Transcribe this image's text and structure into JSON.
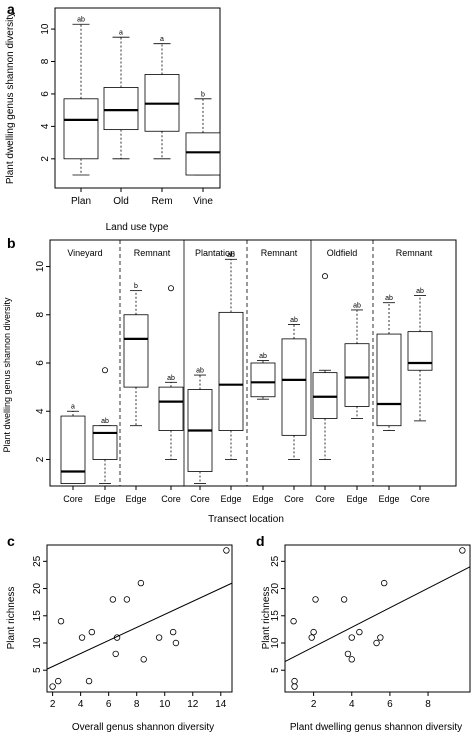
{
  "chart_data": [
    {
      "panel": "a",
      "type": "boxplot",
      "xlabel": "Land use type",
      "ylabel": "Plant dwelling genus shannon diversity",
      "ylim": [
        0.2,
        11.3
      ],
      "yticks": [
        "2",
        "4",
        "6",
        "8",
        "10"
      ],
      "categories": [
        "Plan",
        "Old",
        "Rem",
        "Vine"
      ],
      "boxes": [
        {
          "min": 1.0,
          "q1": 2.0,
          "median": 4.4,
          "q3": 5.7,
          "max": 10.3,
          "label": "ab"
        },
        {
          "min": 2.0,
          "q1": 3.8,
          "median": 5.0,
          "q3": 6.4,
          "max": 9.5,
          "label": "a"
        },
        {
          "min": 2.0,
          "q1": 3.7,
          "median": 5.4,
          "q3": 7.2,
          "max": 9.1,
          "label": "a"
        },
        {
          "min": 1.0,
          "q1": 1.0,
          "median": 2.4,
          "q3": 3.6,
          "max": 5.7,
          "label": "b"
        }
      ]
    },
    {
      "panel": "b",
      "type": "boxplot",
      "xlabel": "Transect location",
      "ylabel": "Plant dwelling genus shannon diversity",
      "ylim": [
        0.9,
        11.1
      ],
      "yticks": [
        "2",
        "4",
        "6",
        "8",
        "10"
      ],
      "segments": [
        "Vineyard",
        "Remnant",
        "Plantation",
        "Remnant",
        "Oldfield",
        "Remnant"
      ],
      "categories": [
        "Core",
        "Edge",
        "Edge",
        "Core",
        "Core",
        "Edge",
        "Edge",
        "Core",
        "Core",
        "Edge",
        "Edge",
        "Core"
      ],
      "boxes": [
        {
          "min": 1.0,
          "q1": 1.0,
          "median": 1.5,
          "q3": 3.8,
          "max": 4.0,
          "label": "a"
        },
        {
          "min": 1.0,
          "q1": 2.0,
          "median": 3.1,
          "q3": 3.4,
          "max": 3.4,
          "label": "ab",
          "outliers": [
            5.7
          ]
        },
        {
          "min": 3.4,
          "q1": 5.0,
          "median": 7.0,
          "q3": 8.0,
          "max": 9.0,
          "label": "b"
        },
        {
          "min": 2.0,
          "q1": 3.2,
          "median": 4.4,
          "q3": 5.0,
          "max": 5.2,
          "label": "ab",
          "outliers": [
            9.1
          ]
        },
        {
          "min": 1.0,
          "q1": 1.5,
          "median": 3.2,
          "q3": 4.9,
          "max": 5.5,
          "label": "ab"
        },
        {
          "min": 2.0,
          "q1": 3.2,
          "median": 5.1,
          "q3": 8.1,
          "max": 10.3,
          "label": "ab"
        },
        {
          "min": 4.5,
          "q1": 4.6,
          "median": 5.2,
          "q3": 6.0,
          "max": 6.1,
          "label": "ab"
        },
        {
          "min": 2.0,
          "q1": 3.0,
          "median": 5.3,
          "q3": 7.0,
          "max": 7.6,
          "label": "ab"
        },
        {
          "min": 2.0,
          "q1": 3.7,
          "median": 4.6,
          "q3": 5.6,
          "max": 5.7,
          "label": "",
          "outliers": [
            9.6
          ]
        },
        {
          "min": 3.7,
          "q1": 4.2,
          "median": 5.4,
          "q3": 6.8,
          "max": 8.2,
          "label": "ab"
        },
        {
          "min": 3.2,
          "q1": 3.4,
          "median": 4.3,
          "q3": 7.2,
          "max": 8.5,
          "label": "ab"
        },
        {
          "min": 3.6,
          "q1": 5.7,
          "median": 6.0,
          "q3": 7.3,
          "max": 8.8,
          "label": "ab"
        }
      ]
    },
    {
      "panel": "c",
      "type": "scatter",
      "xlabel": "Overall genus shannon diversity",
      "ylabel": "Plant richness",
      "xlim": [
        1.6,
        14.8
      ],
      "ylim": [
        1.0,
        28.0
      ],
      "xticks": [
        "2",
        "4",
        "6",
        "8",
        "10",
        "12",
        "14"
      ],
      "yticks": [
        "5",
        "10",
        "15",
        "20",
        "25"
      ],
      "points": [
        [
          2.0,
          2
        ],
        [
          2.4,
          3
        ],
        [
          2.6,
          14
        ],
        [
          4.1,
          11
        ],
        [
          4.6,
          3
        ],
        [
          4.8,
          12
        ],
        [
          6.3,
          18
        ],
        [
          6.6,
          11
        ],
        [
          6.5,
          8
        ],
        [
          7.3,
          18
        ],
        [
          8.3,
          21
        ],
        [
          8.5,
          7
        ],
        [
          9.6,
          11
        ],
        [
          10.6,
          12
        ],
        [
          10.8,
          10
        ],
        [
          14.4,
          27
        ]
      ],
      "fit": {
        "x": [
          1.6,
          14.8
        ],
        "y": [
          5.2,
          21.0
        ]
      }
    },
    {
      "panel": "d",
      "type": "scatter",
      "xlabel": "Plant dwelling genus shannon diversity",
      "ylabel": "Plant richness",
      "xlim": [
        0.5,
        10.2
      ],
      "ylim": [
        1.0,
        28.0
      ],
      "xticks": [
        "2",
        "4",
        "6",
        "8"
      ],
      "yticks": [
        "5",
        "10",
        "15",
        "20",
        "25"
      ],
      "points": [
        [
          1.0,
          2
        ],
        [
          1.0,
          3
        ],
        [
          0.95,
          14
        ],
        [
          1.9,
          11
        ],
        [
          2.0,
          12
        ],
        [
          2.1,
          18
        ],
        [
          3.6,
          18
        ],
        [
          3.8,
          8
        ],
        [
          4.0,
          7
        ],
        [
          4.0,
          11
        ],
        [
          4.4,
          12
        ],
        [
          5.3,
          10
        ],
        [
          5.5,
          11
        ],
        [
          5.7,
          21
        ],
        [
          9.8,
          27
        ]
      ],
      "fit": {
        "x": [
          0.5,
          10.2
        ],
        "y": [
          6.6,
          24.0
        ]
      }
    }
  ]
}
